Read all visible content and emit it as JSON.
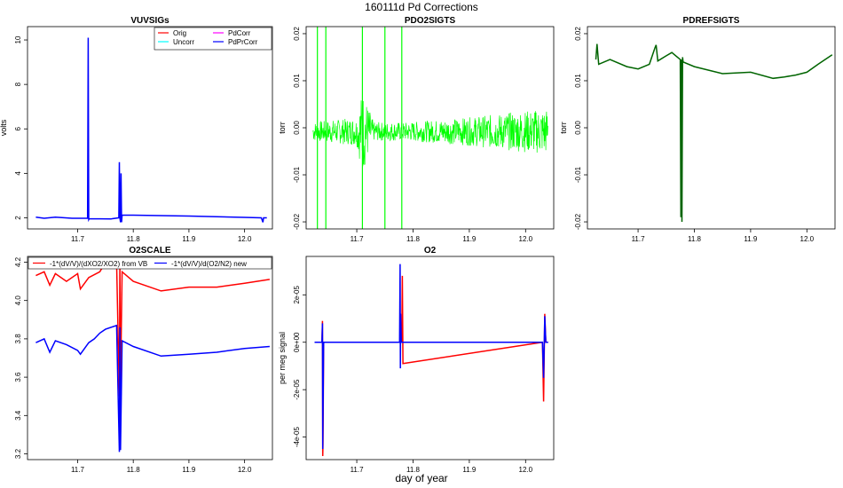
{
  "figure": {
    "title": "160111d   Pd Corrections",
    "xlabel": "day of year"
  },
  "colors": {
    "orig": "#ff0000",
    "uncorr": "#00ffff",
    "pdcorr": "#ff00ff",
    "pdprcorr": "#0000ff",
    "green": "#00ff00",
    "dkgreen": "#006400",
    "red": "#ff0000",
    "blue": "#0000ff",
    "axis": "#000000"
  },
  "chart_data": [
    {
      "id": "vuvsigs",
      "type": "line",
      "title": "VUVSIGs",
      "ylabel": "volts",
      "xlim": [
        11.61,
        12.05
      ],
      "ylim": [
        1.5,
        10.6
      ],
      "xticks": [
        "11.7",
        "11.8",
        "11.9",
        "12.0"
      ],
      "yticks": [
        "2",
        "4",
        "6",
        "8",
        "10"
      ],
      "legend": [
        "Orig",
        "Uncorr",
        "PdCorr",
        "PdPrCorr"
      ],
      "series": [
        {
          "name": "PdPrCorr",
          "color": "pdprcorr",
          "x": [
            11.625,
            11.64,
            11.66,
            11.69,
            11.718,
            11.719,
            11.72,
            11.721,
            11.76,
            11.774,
            11.775,
            11.776,
            11.777,
            11.778,
            11.779,
            11.78,
            11.8,
            11.85,
            11.9,
            11.95,
            12.0,
            12.03,
            12.033,
            12.034,
            12.04
          ],
          "y": [
            2.03,
            1.98,
            2.03,
            1.98,
            1.98,
            10.1,
            1.92,
            1.96,
            1.95,
            2.0,
            4.5,
            2.0,
            1.8,
            4.0,
            1.8,
            2.12,
            2.12,
            2.1,
            2.08,
            2.05,
            2.02,
            2.0,
            1.8,
            2.0,
            2.0
          ]
        }
      ]
    },
    {
      "id": "pdo2sigts",
      "type": "line",
      "title": "PDO2SIGTS",
      "ylabel": "torr",
      "xlim": [
        11.61,
        12.05
      ],
      "ylim": [
        -0.0215,
        0.0215
      ],
      "xticks": [
        "11.7",
        "11.8",
        "11.9",
        "12.0"
      ],
      "yticks": [
        "-0.02",
        "-0.01",
        "0.00",
        "0.01",
        "0.02"
      ],
      "series": [
        {
          "name": "PDO2SIGTS",
          "color": "green",
          "spikes_x": [
            11.63,
            11.645,
            11.71,
            11.75,
            11.78
          ],
          "noise_amp": [
            [
              11.62,
              0.002
            ],
            [
              11.7,
              0.003
            ],
            [
              11.71,
              0.009
            ],
            [
              11.73,
              0.002
            ],
            [
              11.79,
              0.002
            ],
            [
              11.9,
              0.003
            ],
            [
              12.04,
              0.005
            ]
          ]
        }
      ]
    },
    {
      "id": "pdrefsigts",
      "type": "line",
      "title": "PDREFSIGTS",
      "ylabel": "torr",
      "xlim": [
        11.61,
        12.05
      ],
      "ylim": [
        -0.0215,
        0.0215
      ],
      "xticks": [
        "11.7",
        "11.8",
        "11.9",
        "12.0"
      ],
      "yticks": [
        "-0.02",
        "-0.01",
        "0.00",
        "0.01",
        "0.02"
      ],
      "series": [
        {
          "name": "PDREFSIGTS",
          "color": "dkgreen",
          "x": [
            11.625,
            11.627,
            11.63,
            11.65,
            11.68,
            11.7,
            11.72,
            11.73,
            11.732,
            11.735,
            11.75,
            11.76,
            11.775,
            11.776,
            11.777,
            11.778,
            11.779,
            11.78,
            11.8,
            11.85,
            11.9,
            11.94,
            11.96,
            11.98,
            12.0,
            12.02,
            12.045
          ],
          "y": [
            0.0145,
            0.0178,
            0.0135,
            0.0145,
            0.013,
            0.0125,
            0.0135,
            0.017,
            0.0176,
            0.0142,
            0.0153,
            0.016,
            0.0145,
            -0.019,
            0.0145,
            -0.02,
            0.015,
            0.014,
            0.013,
            0.0115,
            0.0118,
            0.0105,
            0.0108,
            0.0112,
            0.0118,
            0.0135,
            0.0155
          ]
        }
      ]
    },
    {
      "id": "o2scale",
      "type": "line",
      "title": "O2SCALE",
      "ylabel": "",
      "xlim": [
        11.61,
        12.05
      ],
      "ylim": [
        3.17,
        4.23
      ],
      "xticks": [
        "11.7",
        "11.8",
        "11.9",
        "12.0"
      ],
      "yticks": [
        "3.2",
        "3.4",
        "3.6",
        "3.8",
        "4.0",
        "4.2"
      ],
      "legend": [
        "-1*(dV/V)/(dXO2/XO2) from VB",
        "-1*(dV/V)/d(O2/N2) new"
      ],
      "series": [
        {
          "name": "-1*(dV/V)/(dXO2/XO2) from VB",
          "color": "red",
          "x": [
            11.625,
            11.64,
            11.65,
            11.66,
            11.68,
            11.7,
            11.705,
            11.72,
            11.74,
            11.75,
            11.77,
            11.775,
            11.776,
            11.777,
            11.78,
            11.8,
            11.85,
            11.9,
            11.95,
            12.0,
            12.045
          ],
          "y": [
            4.13,
            4.15,
            4.08,
            4.14,
            4.1,
            4.14,
            4.06,
            4.12,
            4.15,
            4.2,
            4.2,
            3.5,
            4.2,
            3.55,
            4.15,
            4.1,
            4.05,
            4.07,
            4.07,
            4.09,
            4.11
          ]
        },
        {
          "name": "-1*(dV/V)/d(O2/N2) new",
          "color": "blue",
          "x": [
            11.625,
            11.64,
            11.65,
            11.66,
            11.68,
            11.7,
            11.705,
            11.72,
            11.73,
            11.74,
            11.75,
            11.77,
            11.775,
            11.776,
            11.777,
            11.78,
            11.8,
            11.85,
            11.9,
            11.95,
            12.0,
            12.045
          ],
          "y": [
            3.78,
            3.8,
            3.73,
            3.79,
            3.77,
            3.74,
            3.72,
            3.78,
            3.8,
            3.83,
            3.85,
            3.87,
            3.21,
            3.86,
            3.22,
            3.79,
            3.76,
            3.71,
            3.72,
            3.73,
            3.75,
            3.76
          ]
        }
      ]
    },
    {
      "id": "o2",
      "type": "line",
      "title": "O2",
      "ylabel": "per meg signal",
      "xlim": [
        11.61,
        12.05
      ],
      "ylim": [
        -4.95e-05,
        3.62e-05
      ],
      "xticks": [
        "11.7",
        "11.8",
        "11.9",
        "12.0"
      ],
      "yticks": [
        "-4e-05",
        "-2e-05",
        "0e+00",
        "2e-05"
      ],
      "series": [
        {
          "name": "red",
          "color": "red",
          "x": [
            11.625,
            11.638,
            11.639,
            11.6395,
            11.64,
            11.641,
            11.642,
            11.78,
            11.781,
            11.782,
            12.03,
            12.032,
            12.034,
            12.036,
            12.04
          ],
          "y": [
            0,
            0,
            9e-06,
            -4.8e-05,
            -4.3e-05,
            0,
            0,
            0,
            2.8e-05,
            -9e-06,
            0,
            -2.5e-05,
            1.2e-05,
            0,
            0
          ]
        },
        {
          "name": "blue",
          "color": "blue",
          "x": [
            11.625,
            11.638,
            11.639,
            11.6395,
            11.64,
            11.641,
            11.642,
            11.776,
            11.777,
            11.7775,
            11.778,
            11.779,
            11.78,
            12.03,
            12.032,
            12.034,
            12.036,
            12.04
          ],
          "y": [
            0,
            0,
            8e-06,
            -4.5e-05,
            -3.2e-05,
            0,
            0,
            0,
            3.3e-05,
            -1.1e-05,
            1.2e-05,
            0,
            0,
            0,
            -1.5e-05,
            1.1e-05,
            0,
            0
          ]
        }
      ]
    }
  ]
}
